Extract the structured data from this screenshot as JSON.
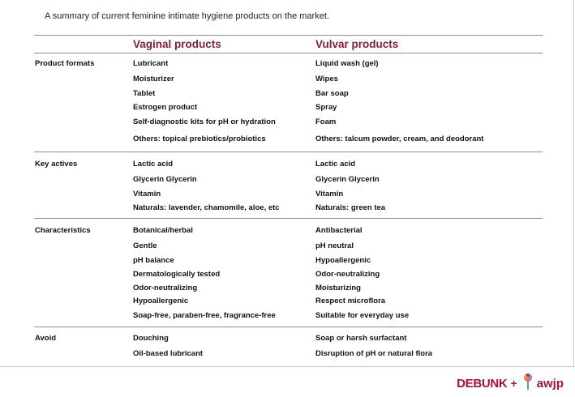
{
  "caption": "A summary of current feminine intimate hygiene products on the market.",
  "headers": {
    "vaginal": "Vaginal products",
    "vulvar": "Vulvar products"
  },
  "sections": [
    {
      "label": "Product formats",
      "rows": [
        [
          "Lubricant",
          "Liquid wash (gel)"
        ],
        [
          "Moisturizer",
          "Wipes"
        ],
        [
          "Tablet",
          "Bar soap"
        ],
        [
          "Estrogen product",
          "Spray"
        ],
        [
          "Self-diagnostic kits for pH or hydration",
          "Foam"
        ],
        [
          "Others: topical prebiotics/probiotics",
          "Others: talcum powder, cream, and deodorant"
        ]
      ]
    },
    {
      "label": "Key actives",
      "rows": [
        [
          "Lactic acid",
          "Lactic acid"
        ],
        [
          "Glycerin Glycerin",
          "Glycerin Glycerin"
        ],
        [
          "Vitamin",
          "Vitamin"
        ],
        [
          "Naturals: lavender, chamomile, aloe, etc",
          "Naturals: green tea"
        ]
      ]
    },
    {
      "label": "Characteristics",
      "rows": [
        [
          "Botanical/herbal",
          "Antibacterial"
        ],
        [
          "Gentle",
          "pH neutral"
        ],
        [
          "pH balance",
          "Hypoallergenic"
        ],
        [
          "Dermatologically tested",
          "Odor-neutralizing"
        ],
        [
          "Odor-neutralizing",
          "Moisturizing"
        ],
        [
          "Hypoallergenic",
          "Respect microflora"
        ],
        [
          "Soap-free, paraben-free, fragrance-free",
          "Suitable for everyday use"
        ]
      ]
    },
    {
      "label": "Avoid",
      "rows": [
        [
          "Douching",
          "Soap or harsh surfactant"
        ],
        [
          "Oil-based lubricant",
          "Disruption of pH or natural flora"
        ]
      ]
    }
  ],
  "logos": {
    "debunk": "DEBUNK",
    "plus": "+",
    "awjp": "awjp"
  }
}
